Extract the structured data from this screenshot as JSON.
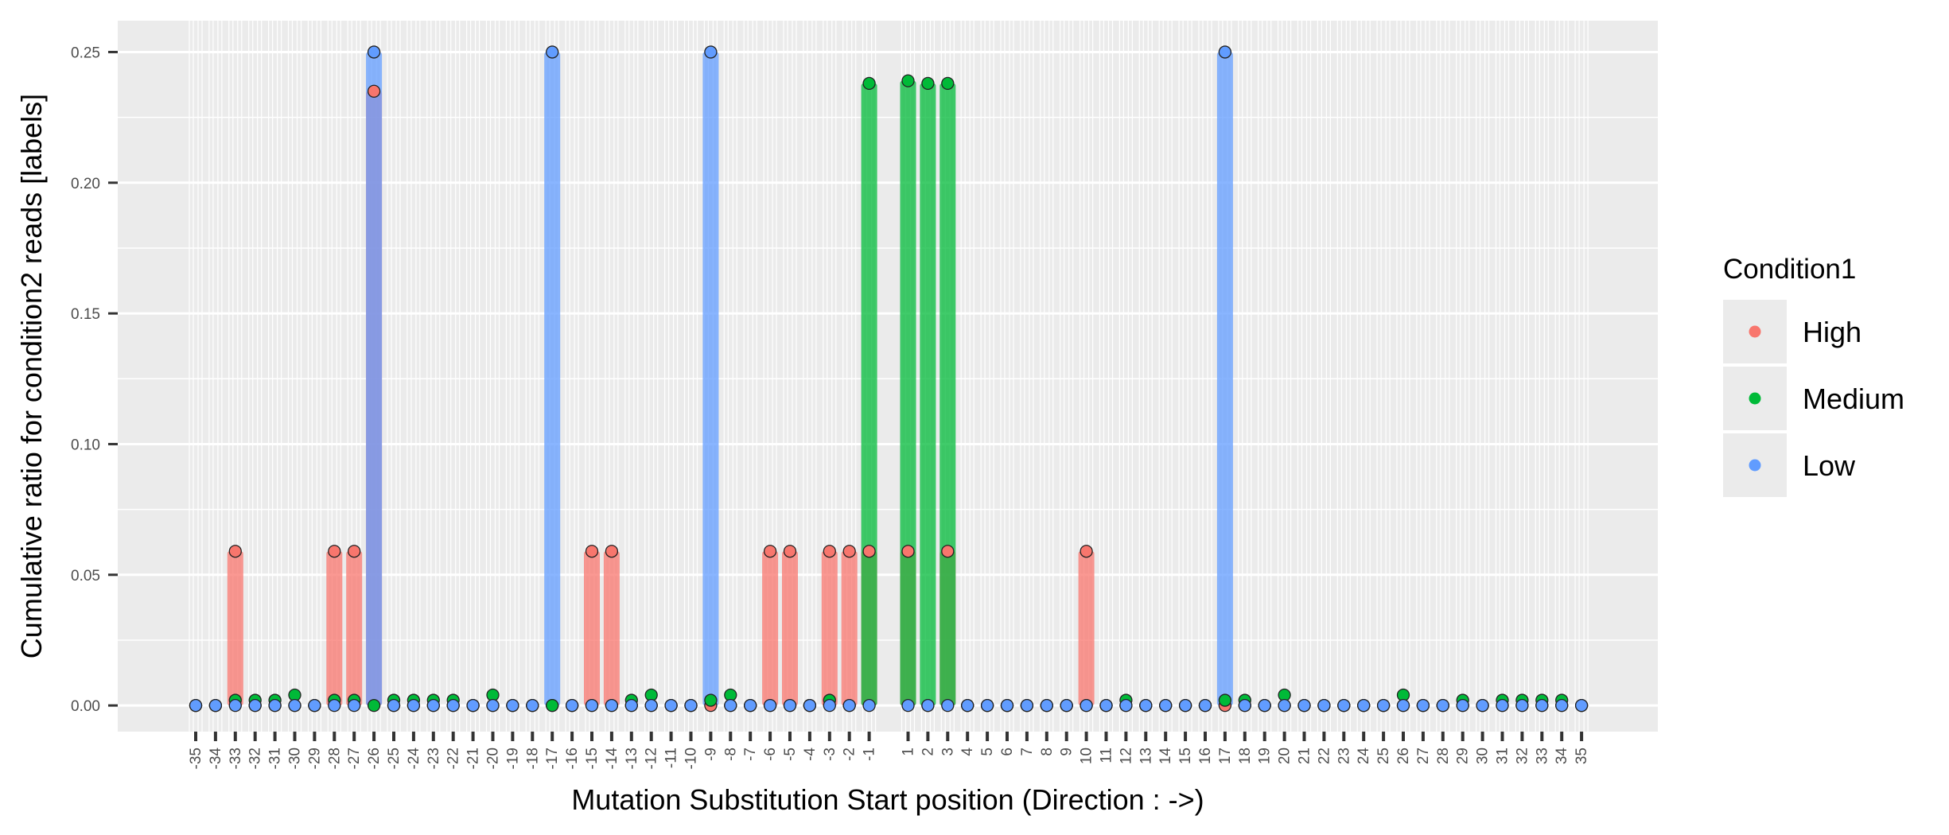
{
  "chart_data": {
    "type": "bar",
    "xlabel": "Mutation Substitution Start position (Direction : ->)",
    "ylabel": "Cumulative ratio for condition2 reads [labels]",
    "ylim": [
      -0.01,
      0.262
    ],
    "yticks": [
      "0.00",
      "0.05",
      "0.10",
      "0.15",
      "0.20",
      "0.25"
    ],
    "ytick_values": [
      0,
      0.05,
      0.1,
      0.15,
      0.2,
      0.25
    ],
    "categories": [
      "-35",
      "-34",
      "-33",
      "-32",
      "-31",
      "-30",
      "-29",
      "-28",
      "-27",
      "-26",
      "-25",
      "-24",
      "-23",
      "-22",
      "-21",
      "-20",
      "-19",
      "-18",
      "-17",
      "-16",
      "-15",
      "-14",
      "-13",
      "-12",
      "-11",
      "-10",
      "-9",
      "-8",
      "-7",
      "-6",
      "-5",
      "-4",
      "-3",
      "-2",
      "-1",
      "1",
      "2",
      "3",
      "4",
      "5",
      "6",
      "7",
      "8",
      "9",
      "10",
      "11",
      "12",
      "13",
      "14",
      "15",
      "16",
      "17",
      "18",
      "19",
      "20",
      "21",
      "22",
      "23",
      "24",
      "25",
      "26",
      "27",
      "28",
      "29",
      "30",
      "31",
      "32",
      "33",
      "34",
      "35"
    ],
    "grid": true,
    "legend": {
      "title": "Condition1",
      "position": "right",
      "entries": [
        "High",
        "Medium",
        "Low"
      ]
    },
    "series": [
      {
        "name": "High",
        "color": "#F8766D",
        "values": [
          0,
          0,
          0.059,
          0,
          0,
          0,
          0,
          0.059,
          0.059,
          0.235,
          0,
          0,
          0,
          0,
          0,
          0,
          0,
          0,
          0,
          0,
          0.059,
          0.059,
          0,
          0,
          0,
          0,
          0,
          0,
          0,
          0.059,
          0.059,
          0,
          0.059,
          0.059,
          0.059,
          0.059,
          0,
          0.059,
          0,
          0,
          0,
          0,
          0,
          0,
          0.059,
          0,
          0,
          0,
          0,
          0,
          0,
          0,
          0,
          0,
          0,
          0,
          0,
          0,
          0,
          0,
          0,
          0,
          0,
          0,
          0,
          0,
          0,
          0,
          0,
          0
        ]
      },
      {
        "name": "Medium",
        "color": "#00BA38",
        "values": [
          0,
          0,
          0.002,
          0.002,
          0.002,
          0.004,
          0,
          0.002,
          0.002,
          0,
          0.002,
          0.002,
          0.002,
          0.002,
          0,
          0.004,
          0,
          0,
          0,
          0,
          0,
          0,
          0.002,
          0.004,
          0,
          0,
          0.002,
          0.004,
          0,
          0,
          0,
          0,
          0.002,
          0,
          0.238,
          0.239,
          0.238,
          0.238,
          0,
          0,
          0,
          0,
          0,
          0,
          0,
          0,
          0.002,
          0,
          0,
          0,
          0,
          0.002,
          0.002,
          0,
          0.004,
          0,
          0,
          0,
          0,
          0,
          0.004,
          0,
          0,
          0.002,
          0,
          0.002,
          0.002,
          0.002,
          0.002,
          0
        ]
      },
      {
        "name": "Low",
        "color": "#619CFF",
        "values": [
          0,
          0,
          0,
          0,
          0,
          0,
          0,
          0,
          0,
          0.25,
          0,
          0,
          0,
          0,
          0,
          0,
          0,
          0,
          0.25,
          0,
          0,
          0,
          0,
          0,
          0,
          0,
          0.25,
          0,
          0,
          0,
          0,
          0,
          0,
          0,
          0,
          0,
          0,
          0,
          0,
          0,
          0,
          0,
          0,
          0,
          0,
          0,
          0,
          0,
          0,
          0,
          0,
          0.25,
          0,
          0,
          0,
          0,
          0,
          0,
          0,
          0,
          0,
          0,
          0,
          0,
          0,
          0,
          0,
          0,
          0,
          0
        ]
      }
    ]
  }
}
